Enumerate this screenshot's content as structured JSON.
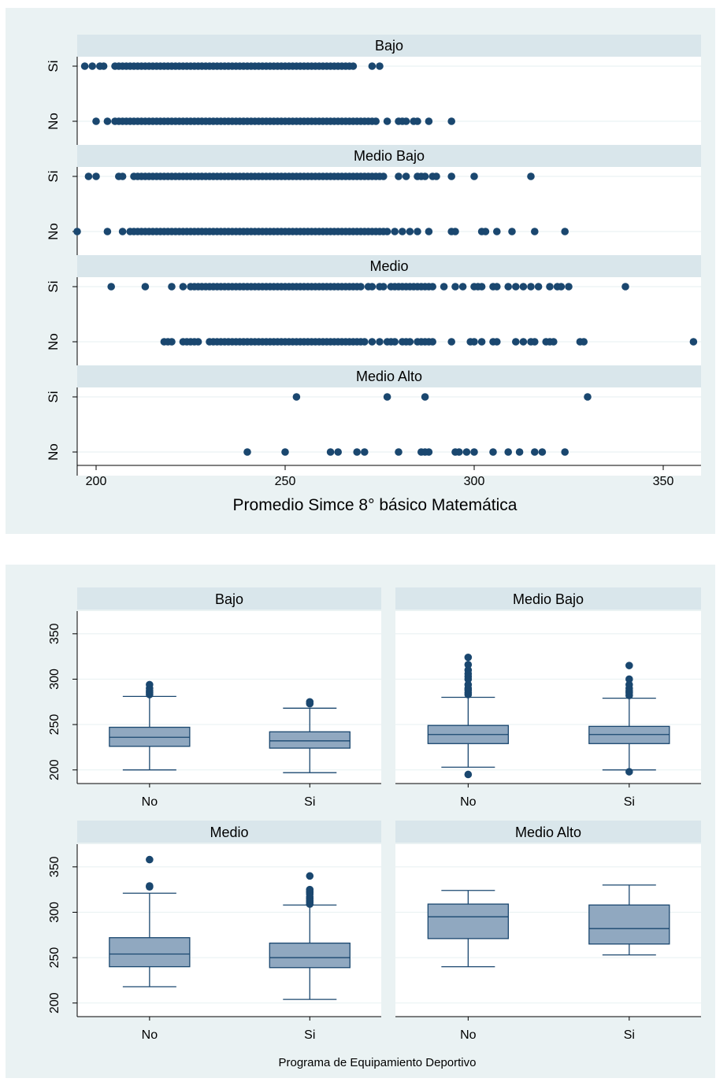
{
  "colors": {
    "panel_background": "#eaf2f3",
    "plot_background": "#ffffff",
    "strip_background": "#d9e6eb",
    "gridline": "#eaf2f3",
    "marker": "#1a476f",
    "box_fill": "#90a8c0",
    "box_outline": "#1a476f"
  },
  "chart_data": [
    {
      "type": "scatter",
      "xlabel": "Promedio Simce 8° básico Matemática",
      "ylabel": "",
      "xlim": [
        195,
        360
      ],
      "x_ticks": [
        200,
        250,
        300,
        350
      ],
      "y_categories": [
        "Si",
        "No"
      ],
      "grid": true,
      "panels": [
        {
          "title": "Bajo",
          "series": [
            {
              "category": "Si",
              "x": [
                197,
                199,
                201,
                202,
                205,
                206,
                207,
                208,
                209,
                210,
                211,
                212,
                213,
                214,
                215,
                216,
                217,
                218,
                219,
                220,
                221,
                222,
                223,
                224,
                225,
                226,
                227,
                228,
                229,
                230,
                231,
                232,
                233,
                234,
                235,
                236,
                237,
                238,
                239,
                240,
                241,
                242,
                243,
                244,
                245,
                246,
                247,
                248,
                249,
                250,
                251,
                252,
                253,
                254,
                255,
                256,
                257,
                258,
                259,
                260,
                261,
                262,
                263,
                264,
                265,
                266,
                267,
                268,
                273,
                275
              ]
            },
            {
              "category": "No",
              "x": [
                200,
                203,
                205,
                206,
                207,
                208,
                209,
                210,
                211,
                212,
                213,
                214,
                215,
                216,
                217,
                218,
                219,
                220,
                221,
                222,
                223,
                224,
                225,
                226,
                227,
                228,
                229,
                230,
                231,
                232,
                233,
                234,
                235,
                236,
                237,
                238,
                239,
                240,
                241,
                242,
                243,
                244,
                245,
                246,
                247,
                248,
                249,
                250,
                251,
                252,
                253,
                254,
                255,
                256,
                257,
                258,
                259,
                260,
                261,
                262,
                263,
                264,
                265,
                266,
                267,
                268,
                269,
                270,
                271,
                272,
                273,
                274,
                277,
                280,
                281,
                282,
                284,
                285,
                288,
                294
              ]
            }
          ]
        },
        {
          "title": "Medio Bajo",
          "series": [
            {
              "category": "Si",
              "x": [
                198,
                200,
                206,
                207,
                210,
                211,
                212,
                213,
                214,
                215,
                216,
                217,
                218,
                219,
                220,
                221,
                222,
                223,
                224,
                225,
                226,
                227,
                228,
                229,
                230,
                231,
                232,
                233,
                234,
                235,
                236,
                237,
                238,
                239,
                240,
                241,
                242,
                243,
                244,
                245,
                246,
                247,
                248,
                249,
                250,
                251,
                252,
                253,
                254,
                255,
                256,
                257,
                258,
                259,
                260,
                261,
                262,
                263,
                264,
                265,
                266,
                267,
                268,
                269,
                270,
                271,
                272,
                273,
                274,
                275,
                276,
                280,
                282,
                285,
                286,
                287,
                289,
                290,
                294,
                300,
                315
              ]
            },
            {
              "category": "No",
              "x": [
                195,
                203,
                207,
                209,
                210,
                211,
                212,
                213,
                214,
                215,
                216,
                217,
                218,
                219,
                220,
                221,
                222,
                223,
                224,
                225,
                226,
                227,
                228,
                229,
                230,
                231,
                232,
                233,
                234,
                235,
                236,
                237,
                238,
                239,
                240,
                241,
                242,
                243,
                244,
                245,
                246,
                247,
                248,
                249,
                250,
                251,
                252,
                253,
                254,
                255,
                256,
                257,
                258,
                259,
                260,
                261,
                262,
                263,
                264,
                265,
                266,
                267,
                268,
                269,
                270,
                271,
                272,
                273,
                274,
                275,
                276,
                277,
                279,
                281,
                283,
                285,
                288,
                294,
                295,
                302,
                303,
                306,
                310,
                316,
                324
              ]
            }
          ]
        },
        {
          "title": "Medio",
          "series": [
            {
              "category": "Si",
              "x": [
                204,
                213,
                220,
                223,
                225,
                226,
                227,
                228,
                229,
                230,
                231,
                232,
                233,
                234,
                235,
                236,
                237,
                238,
                239,
                240,
                241,
                242,
                243,
                244,
                245,
                246,
                247,
                248,
                249,
                250,
                251,
                252,
                253,
                254,
                255,
                256,
                257,
                258,
                259,
                260,
                261,
                262,
                263,
                264,
                265,
                266,
                267,
                268,
                269,
                270,
                272,
                273,
                275,
                276,
                278,
                279,
                280,
                281,
                282,
                283,
                284,
                285,
                286,
                287,
                288,
                289,
                292,
                295,
                297,
                300,
                301,
                302,
                305,
                306,
                309,
                311,
                313,
                315,
                317,
                320,
                322,
                323,
                325,
                340
              ]
            },
            {
              "category": "No",
              "x": [
                218,
                219,
                220,
                223,
                224,
                225,
                226,
                227,
                230,
                231,
                232,
                233,
                234,
                235,
                236,
                237,
                238,
                239,
                240,
                241,
                242,
                243,
                244,
                245,
                246,
                247,
                248,
                249,
                250,
                251,
                252,
                253,
                254,
                255,
                256,
                257,
                258,
                259,
                260,
                261,
                262,
                263,
                264,
                265,
                266,
                267,
                268,
                269,
                270,
                271,
                273,
                275,
                277,
                278,
                279,
                281,
                282,
                283,
                285,
                286,
                287,
                288,
                289,
                294,
                299,
                300,
                302,
                305,
                306,
                311,
                313,
                315,
                316,
                319,
                320,
                321,
                328,
                329,
                358
              ]
            }
          ]
        },
        {
          "title": "Medio Alto",
          "series": [
            {
              "category": "Si",
              "x": [
                253,
                277,
                287,
                330
              ]
            },
            {
              "category": "No",
              "x": [
                240,
                250,
                262,
                264,
                269,
                271,
                280,
                286,
                287,
                288,
                295,
                296,
                298,
                300,
                305,
                309,
                312,
                316,
                318,
                324
              ]
            }
          ]
        }
      ]
    },
    {
      "type": "box",
      "title": "",
      "xlabel": "Programa de Equipamiento Deportivo",
      "ylabel": "",
      "ylim": [
        185,
        375
      ],
      "y_ticks": [
        200,
        250,
        300,
        350
      ],
      "categories": [
        "No",
        "Si"
      ],
      "grid": true,
      "panels": [
        {
          "title": "Bajo",
          "boxes": [
            {
              "category": "No",
              "whisker_low": 200,
              "q1": 226,
              "median": 236,
              "q3": 247,
              "whisker_high": 281,
              "outliers": [
                283,
                285,
                287,
                290,
                294
              ]
            },
            {
              "category": "Si",
              "whisker_low": 197,
              "q1": 224,
              "median": 232,
              "q3": 242,
              "whisker_high": 268,
              "outliers": [
                273,
                275
              ]
            }
          ]
        },
        {
          "title": "Medio Bajo",
          "boxes": [
            {
              "category": "No",
              "whisker_low": 203,
              "q1": 229,
              "median": 239,
              "q3": 249,
              "whisker_high": 280,
              "outliers": [
                195,
                283,
                285,
                288,
                290,
                294,
                300,
                303,
                306,
                310,
                316,
                324
              ]
            },
            {
              "category": "Si",
              "whisker_low": 200,
              "q1": 229,
              "median": 239,
              "q3": 248,
              "whisker_high": 279,
              "outliers": [
                198,
                282,
                285,
                287,
                290,
                294,
                300,
                315
              ]
            }
          ]
        },
        {
          "title": "Medio",
          "boxes": [
            {
              "category": "No",
              "whisker_low": 218,
              "q1": 240,
              "median": 254,
              "q3": 272,
              "whisker_high": 321,
              "outliers": [
                328,
                329,
                358
              ]
            },
            {
              "category": "Si",
              "whisker_low": 204,
              "q1": 239,
              "median": 250,
              "q3": 266,
              "whisker_high": 308,
              "outliers": [
                309,
                311,
                313,
                315,
                317,
                320,
                322,
                323,
                325,
                340
              ]
            }
          ]
        },
        {
          "title": "Medio Alto",
          "boxes": [
            {
              "category": "No",
              "whisker_low": 240,
              "q1": 271,
              "median": 295,
              "q3": 309,
              "whisker_high": 324,
              "outliers": []
            },
            {
              "category": "Si",
              "whisker_low": 253,
              "q1": 265,
              "median": 282,
              "q3": 308,
              "whisker_high": 330,
              "outliers": []
            }
          ]
        }
      ]
    }
  ]
}
